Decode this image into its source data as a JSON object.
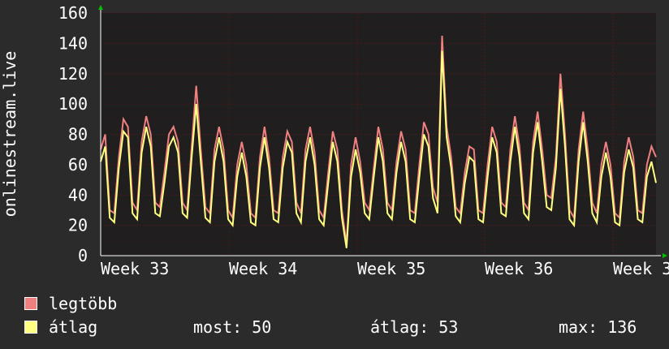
{
  "chart_data": {
    "type": "line",
    "ylabel": "onlinestream.live",
    "ylim": [
      0,
      160
    ],
    "yticks": [
      "0",
      "20",
      "40",
      "60",
      "80",
      "100",
      "120",
      "140",
      "160"
    ],
    "xticks": [
      "Week 33",
      "Week 34",
      "Week 35",
      "Week 36",
      "Week 3"
    ],
    "grid": true,
    "colors": {
      "background": "#1f1f1f",
      "grid": "#4a1a1a",
      "axis": "#ffffff",
      "arrow": "#00c000"
    },
    "series": [
      {
        "name": "legtöbb",
        "color": "#f07f7f",
        "values": [
          70,
          80,
          30,
          28,
          65,
          90,
          85,
          35,
          30,
          75,
          92,
          80,
          35,
          32,
          55,
          80,
          85,
          75,
          35,
          30,
          72,
          112,
          70,
          32,
          28,
          70,
          85,
          70,
          30,
          25,
          60,
          75,
          60,
          28,
          25,
          65,
          85,
          65,
          30,
          28,
          65,
          82,
          75,
          35,
          28,
          70,
          85,
          68,
          30,
          25,
          55,
          82,
          70,
          30,
          8,
          60,
          78,
          62,
          35,
          30,
          58,
          85,
          70,
          35,
          30,
          62,
          82,
          70,
          30,
          28,
          60,
          88,
          80,
          45,
          35,
          145,
          85,
          65,
          32,
          28,
          55,
          72,
          70,
          30,
          28,
          60,
          85,
          75,
          35,
          32,
          70,
          92,
          72,
          35,
          30,
          75,
          95,
          70,
          40,
          38,
          65,
          120,
          80,
          30,
          25,
          70,
          95,
          70,
          35,
          28,
          60,
          75,
          60,
          28,
          25,
          62,
          78,
          65,
          30,
          28,
          60,
          72,
          65
        ]
      },
      {
        "name": "átlag",
        "color": "#ffff80",
        "values": [
          62,
          72,
          25,
          22,
          58,
          82,
          78,
          28,
          24,
          68,
          85,
          72,
          28,
          26,
          48,
          72,
          78,
          68,
          28,
          25,
          65,
          100,
          62,
          25,
          22,
          62,
          78,
          62,
          24,
          20,
          52,
          68,
          52,
          22,
          20,
          58,
          78,
          58,
          24,
          22,
          58,
          75,
          68,
          28,
          22,
          62,
          78,
          60,
          24,
          20,
          48,
          75,
          62,
          25,
          5,
          52,
          70,
          55,
          28,
          24,
          52,
          78,
          62,
          28,
          24,
          55,
          75,
          62,
          24,
          22,
          52,
          80,
          72,
          38,
          28,
          135,
          78,
          58,
          26,
          22,
          48,
          65,
          62,
          24,
          22,
          52,
          78,
          68,
          28,
          26,
          62,
          85,
          65,
          28,
          24,
          68,
          88,
          62,
          32,
          30,
          58,
          110,
          72,
          24,
          20,
          62,
          88,
          62,
          28,
          22,
          52,
          68,
          52,
          22,
          20,
          55,
          70,
          58,
          24,
          22,
          52,
          62,
          48
        ]
      }
    ],
    "legend": {
      "position": "bottom-left"
    }
  },
  "stats": {
    "most_label": "most:",
    "most_value": "50",
    "atlag_label": "átlag:",
    "atlag_value": "53",
    "max_label": "max:",
    "max_value": "136"
  }
}
